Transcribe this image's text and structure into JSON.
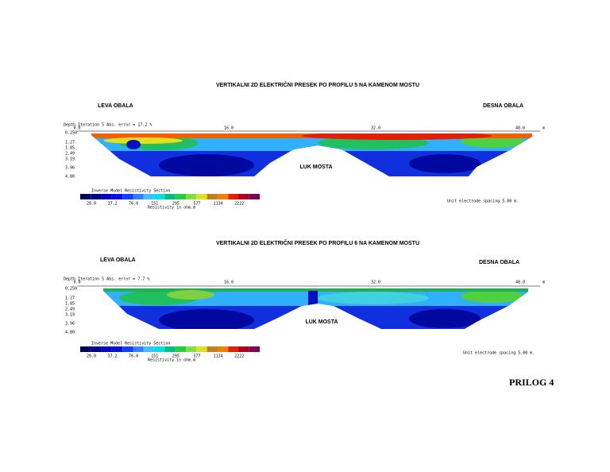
{
  "panels": [
    {
      "title": "VERTIKALNI 2D ELEKTRIČNI PRESEK PO PROFILU 5 NA KAMENOM MOSTU",
      "left_bank": "LEVA OBALA",
      "right_bank": "DESNA OBALA",
      "depth_header": "Depth  Iteration 5 Abs. error = 17.2 %",
      "x_labels": [
        "0.0",
        "16.0",
        "32.0",
        "48.0"
      ],
      "x_unit": "m",
      "depth_labels": [
        "0.250",
        "1.27",
        "1.85",
        "2.49",
        "3.19",
        "3.96",
        "4.80"
      ],
      "arch_label": "LUK MOSTA",
      "legend_title": "Inverse Model Resistivity Section",
      "legend_labels": [
        "20.0",
        "37.2",
        "76.0",
        "151",
        "295",
        "577",
        "1134",
        "2222"
      ],
      "legend_unit": "Resistivity in ohm.m",
      "spacing_note": "Unit electrode spacing 5.00 m."
    },
    {
      "title": "VERTIKALNI 2D ELEKTRIČNI PRESEK PO PROFILU 6 NA KAMENOM MOSTU",
      "left_bank": "LEVA OBALA",
      "right_bank": "DESNA OBALA",
      "depth_header": "Depth  Iteration 5 Abs. error = 7.7 %",
      "x_labels": [
        "0.0",
        "16.0",
        "32.0",
        "48.0"
      ],
      "x_unit": "m",
      "depth_labels": [
        "0.250",
        "1.27",
        "1.85",
        "2.49",
        "3.19",
        "3.96",
        "4.80"
      ],
      "arch_label": "LUK MOSTA",
      "legend_title": "Inverse Model Resistivity Section",
      "legend_labels": [
        "20.0",
        "37.2",
        "76.0",
        "151",
        "295",
        "577",
        "1134",
        "2222"
      ],
      "legend_unit": "Resistivity in ohm.m",
      "spacing_note": "Unit electrode spacing 5.00 m."
    }
  ],
  "footer": "PRILOG 4"
}
